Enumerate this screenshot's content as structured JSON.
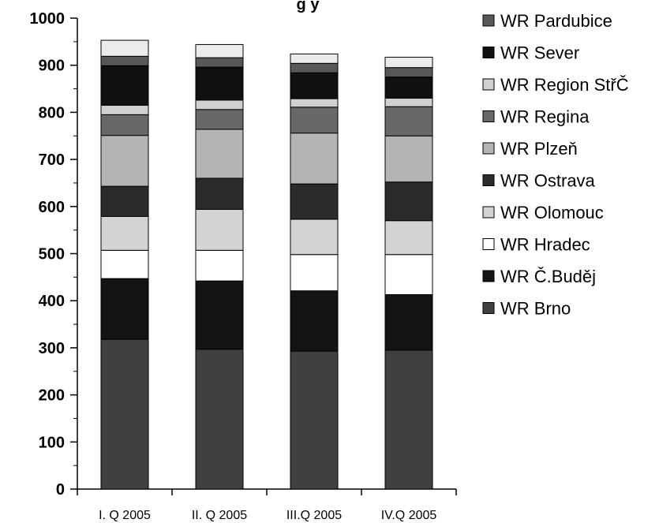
{
  "chart_data": {
    "type": "bar",
    "stacked": true,
    "title": "g  y",
    "categories": [
      "I. Q 2005",
      "II. Q 2005",
      "III.Q 2005",
      "IV.Q 2005"
    ],
    "ylim": [
      0,
      1000
    ],
    "yticks": [
      "0",
      "100",
      "200",
      "300",
      "400",
      "500",
      "600",
      "700",
      "800",
      "900",
      "1000"
    ],
    "grid": false,
    "legend_position": "right",
    "series": [
      {
        "name": "WR Brno",
        "color": "#404040",
        "values": [
          318,
          297,
          293,
          295
        ]
      },
      {
        "name": "WR Č.Buděj",
        "color": "#141414",
        "values": [
          129,
          145,
          128,
          118
        ]
      },
      {
        "name": "WR Hradec",
        "color": "#ffffff",
        "values": [
          60,
          65,
          77,
          85
        ]
      },
      {
        "name": "WR Olomouc",
        "color": "#d3d3d3",
        "values": [
          72,
          87,
          75,
          72
        ]
      },
      {
        "name": "WR Ostrava",
        "color": "#2b2b2b",
        "values": [
          64,
          66,
          75,
          82
        ]
      },
      {
        "name": "WR Plzeň",
        "color": "#b4b4b4",
        "values": [
          108,
          104,
          108,
          98
        ]
      },
      {
        "name": "WR Regina",
        "color": "#686868",
        "values": [
          44,
          42,
          55,
          62
        ]
      },
      {
        "name": "WR Region StřČ",
        "color": "#d0d0d0",
        "values": [
          20,
          20,
          18,
          18
        ]
      },
      {
        "name": "WR Sever",
        "color": "#101010",
        "values": [
          84,
          70,
          55,
          45
        ]
      },
      {
        "name": "WR Pardubice",
        "color": "#585858",
        "values": [
          20,
          20,
          20,
          20
        ]
      },
      {
        "name": "",
        "color": "#ebebeb",
        "values": [
          34,
          28,
          20,
          22
        ]
      }
    ]
  }
}
